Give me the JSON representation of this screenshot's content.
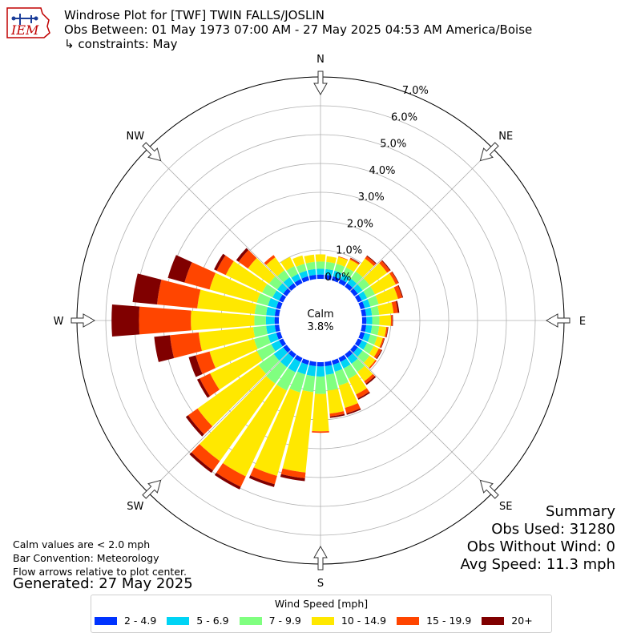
{
  "header": {
    "line1": "Windrose Plot for [TWF] TWIN FALLS/JOSLIN",
    "line2": "Obs Between: 01 May 1973 07:00 AM - 27 May 2025 04:53 AM America/Boise",
    "line3": "↳ constraints: May"
  },
  "logo_text": "IEM",
  "notes": {
    "calm_note": "Calm values are < 2.0 mph",
    "bar_convention": "Bar Convention: Meteorology",
    "flow_note": "Flow arrows relative to plot center.",
    "generated": "Generated: 27 May 2025"
  },
  "summary": {
    "title": "Summary",
    "obs_used": "Obs Used: 31280",
    "obs_without_wind": "Obs Without Wind: 0",
    "avg_speed": "Avg Speed: 11.3 mph"
  },
  "colors": {
    "axis": "#000000",
    "grid": "#b0b0b0",
    "arrow_fill": "#ffffff",
    "arrow_stroke": "#333333"
  },
  "chart_data": {
    "type": "windrose",
    "units": "%",
    "calm_label": "Calm",
    "calm_value": "3.8%",
    "calm_percent": 3.8,
    "radial_ticks": [
      "0.0%",
      "1.0%",
      "2.0%",
      "3.0%",
      "4.0%",
      "5.0%",
      "6.0%",
      "7.0%"
    ],
    "rmax": 7.0,
    "compass_labels": [
      {
        "label": "N",
        "angle": 0
      },
      {
        "label": "NE",
        "angle": 45
      },
      {
        "label": "E",
        "angle": 90
      },
      {
        "label": "SE",
        "angle": 135
      },
      {
        "label": "S",
        "angle": 180
      },
      {
        "label": "SW",
        "angle": 225
      },
      {
        "label": "W",
        "angle": 270
      },
      {
        "label": "NW",
        "angle": 315
      }
    ],
    "legend_title": "Wind Speed [mph]",
    "bins": [
      {
        "name": "2 - 4.9",
        "color": "#0033ff"
      },
      {
        "name": "5 - 6.9",
        "color": "#00d4f5"
      },
      {
        "name": "7 - 9.9",
        "color": "#80ff80"
      },
      {
        "name": "10 - 14.9",
        "color": "#ffe800"
      },
      {
        "name": "15 - 19.9",
        "color": "#ff4500"
      },
      {
        "name": "20+",
        "color": "#800000"
      }
    ],
    "directions": [
      0,
      10,
      20,
      30,
      40,
      50,
      60,
      70,
      80,
      90,
      100,
      110,
      120,
      130,
      140,
      150,
      160,
      170,
      180,
      190,
      200,
      210,
      220,
      230,
      240,
      250,
      260,
      270,
      280,
      290,
      300,
      310,
      320,
      330,
      340,
      350
    ],
    "values": [
      [
        0.15,
        0.2,
        0.25,
        0.25,
        0.0,
        0.0
      ],
      [
        0.15,
        0.2,
        0.25,
        0.2,
        0.0,
        0.0
      ],
      [
        0.15,
        0.2,
        0.25,
        0.25,
        0.02,
        0.0
      ],
      [
        0.15,
        0.2,
        0.25,
        0.3,
        0.05,
        0.02
      ],
      [
        0.15,
        0.2,
        0.3,
        0.55,
        0.1,
        0.03
      ],
      [
        0.15,
        0.2,
        0.3,
        0.75,
        0.12,
        0.03
      ],
      [
        0.15,
        0.2,
        0.3,
        0.8,
        0.1,
        0.02
      ],
      [
        0.15,
        0.2,
        0.3,
        0.7,
        0.15,
        0.03
      ],
      [
        0.15,
        0.2,
        0.25,
        0.5,
        0.15,
        0.05
      ],
      [
        0.15,
        0.2,
        0.25,
        0.4,
        0.05,
        0.02
      ],
      [
        0.15,
        0.2,
        0.25,
        0.25,
        0.05,
        0.02
      ],
      [
        0.15,
        0.2,
        0.25,
        0.2,
        0.05,
        0.02
      ],
      [
        0.15,
        0.2,
        0.25,
        0.2,
        0.1,
        0.03
      ],
      [
        0.15,
        0.2,
        0.3,
        0.25,
        0.05,
        0.0
      ],
      [
        0.15,
        0.25,
        0.35,
        0.4,
        0.1,
        0.05
      ],
      [
        0.15,
        0.25,
        0.4,
        0.6,
        0.15,
        0.05
      ],
      [
        0.15,
        0.25,
        0.5,
        0.8,
        0.2,
        0.05
      ],
      [
        0.15,
        0.3,
        0.55,
        0.8,
        0.1,
        0.05
      ],
      [
        0.15,
        0.35,
        0.6,
        1.3,
        0.05,
        0.0
      ],
      [
        0.15,
        0.35,
        0.55,
        2.8,
        0.2,
        0.1
      ],
      [
        0.15,
        0.35,
        0.65,
        3.0,
        0.3,
        0.1
      ],
      [
        0.15,
        0.4,
        0.7,
        3.3,
        0.4,
        0.1
      ],
      [
        0.15,
        0.4,
        0.7,
        3.3,
        0.4,
        0.1
      ],
      [
        0.15,
        0.4,
        0.65,
        2.6,
        0.4,
        0.1
      ],
      [
        0.15,
        0.3,
        0.55,
        1.8,
        0.4,
        0.1
      ],
      [
        0.15,
        0.3,
        0.5,
        1.6,
        0.5,
        0.25
      ],
      [
        0.15,
        0.3,
        0.45,
        1.9,
        1.0,
        0.55
      ],
      [
        0.15,
        0.3,
        0.4,
        2.2,
        1.8,
        0.95
      ],
      [
        0.15,
        0.3,
        0.4,
        2.0,
        1.4,
        0.85
      ],
      [
        0.15,
        0.3,
        0.4,
        1.7,
        0.9,
        0.6
      ],
      [
        0.15,
        0.25,
        0.4,
        1.4,
        0.35,
        0.1
      ],
      [
        0.15,
        0.25,
        0.35,
        0.9,
        0.4,
        0.1
      ],
      [
        0.15,
        0.25,
        0.3,
        0.55,
        0.1,
        0.0
      ],
      [
        0.15,
        0.2,
        0.3,
        0.35,
        0.0,
        0.0
      ],
      [
        0.15,
        0.2,
        0.25,
        0.3,
        0.0,
        0.0
      ],
      [
        0.15,
        0.2,
        0.25,
        0.25,
        0.0,
        0.0
      ]
    ]
  }
}
